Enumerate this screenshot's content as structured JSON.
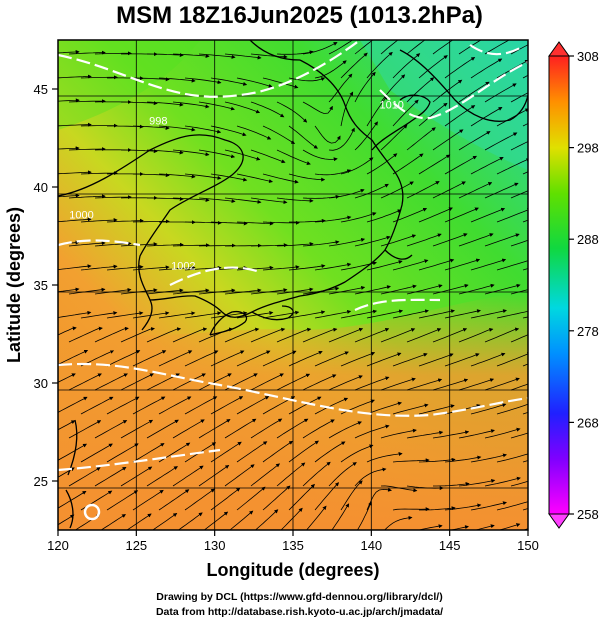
{
  "title": "MSM 18Z16Jun2025 (1013.2hPa)",
  "xaxis": {
    "label": "Longitude (degrees)",
    "ticks": [
      {
        "value": 120,
        "label": "120"
      },
      {
        "value": 125,
        "label": "125"
      },
      {
        "value": 130,
        "label": "130"
      },
      {
        "value": 135,
        "label": "135"
      },
      {
        "value": 140,
        "label": "140"
      },
      {
        "value": 145,
        "label": "145"
      },
      {
        "value": 150,
        "label": "150"
      }
    ],
    "range": [
      120,
      150
    ]
  },
  "yaxis": {
    "label": "Latitude  (degrees)",
    "ticks": [
      {
        "value": 25,
        "label": "25"
      },
      {
        "value": 30,
        "label": "30"
      },
      {
        "value": 35,
        "label": "35"
      },
      {
        "value": 40,
        "label": "40"
      },
      {
        "value": 45,
        "label": "45"
      }
    ],
    "range": [
      22.5,
      47.5
    ]
  },
  "colorbar": {
    "min": 258,
    "max": 308,
    "labels": [
      {
        "value": 308,
        "label": "308"
      },
      {
        "value": 298,
        "label": "298"
      },
      {
        "value": 288,
        "label": "288"
      },
      {
        "value": 278,
        "label": "278"
      },
      {
        "value": 268,
        "label": "268"
      },
      {
        "value": 258,
        "label": "258"
      }
    ],
    "colors": [
      "#ff00ff",
      "#2020ff",
      "#00c8ff",
      "#00e0a0",
      "#20d020",
      "#b0e000",
      "#ffd000",
      "#ff8000",
      "#ff3000"
    ]
  },
  "contour_labels": [
    {
      "lon": 126.4,
      "lat": 43.2,
      "text": "998"
    },
    {
      "lon": 121.5,
      "lat": 38.4,
      "text": "1000"
    },
    {
      "lon": 128.0,
      "lat": 35.8,
      "text": "1002"
    },
    {
      "lon": 141.3,
      "lat": 44.0,
      "text": "1010"
    }
  ],
  "credits": {
    "line1": "Drawing by DCL (https://www.gfd-dennou.org/library/dcl/)",
    "line2": "Data from http://database.rish.kyoto-u.ac.jp/arch/jmadata/"
  }
}
